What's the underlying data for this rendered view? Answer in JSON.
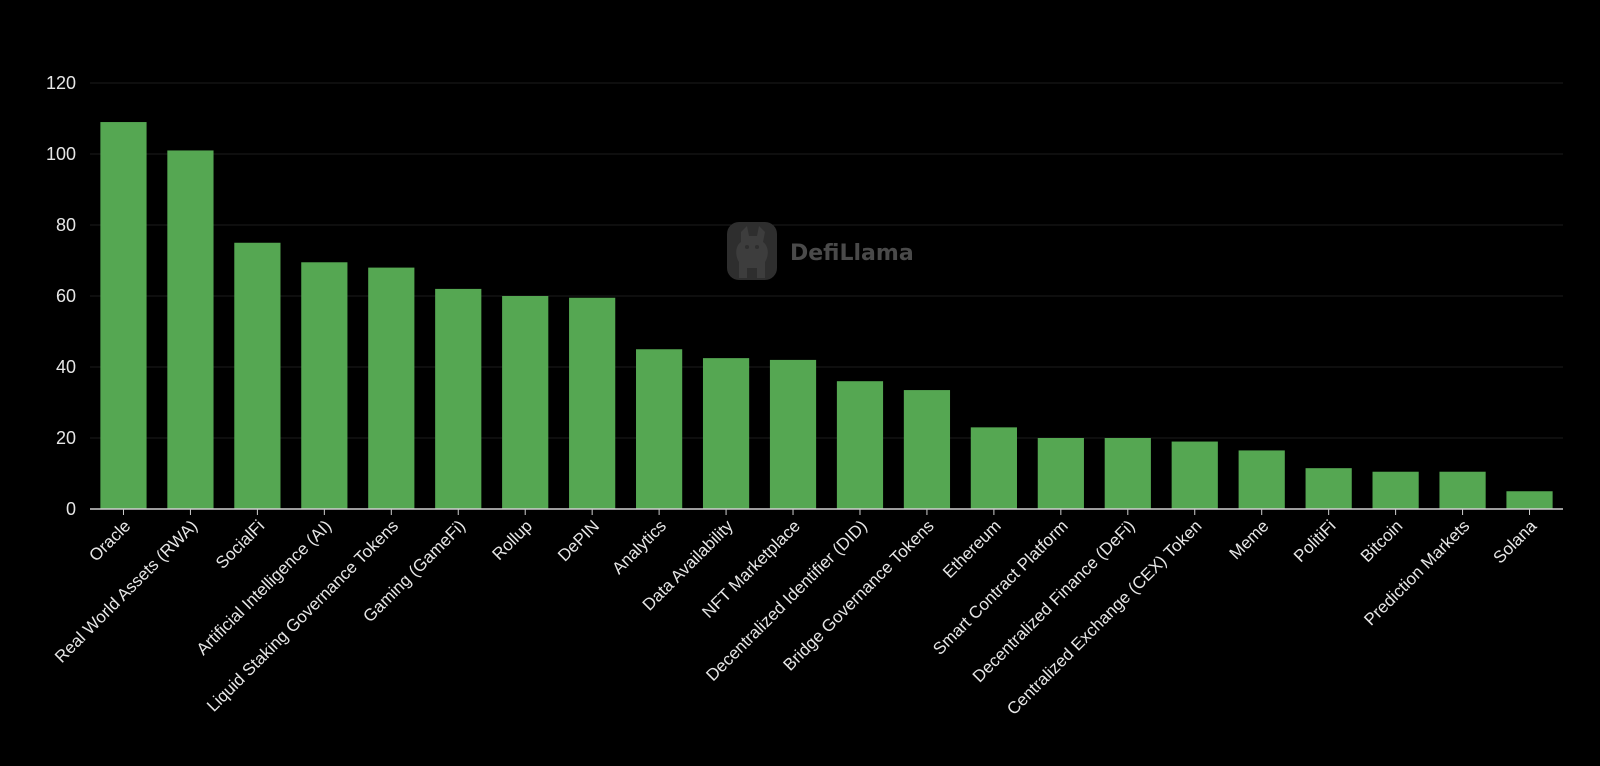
{
  "chart_data": {
    "type": "bar",
    "title": "",
    "xlabel": "",
    "ylabel": "",
    "ylim": [
      0,
      120
    ],
    "yticks": [
      0,
      20,
      40,
      60,
      80,
      100,
      120
    ],
    "grid": true,
    "bar_color": "#55a752",
    "background": "#000000",
    "categories": [
      "Oracle",
      "Real World Assets (RWA)",
      "SocialFi",
      "Artificial Intelligence (AI)",
      "Liquid Staking Governance Tokens",
      "Gaming (GameFi)",
      "Rollup",
      "DePIN",
      "Analytics",
      "Data Availability",
      "NFT Marketplace",
      "Decentralized Identifier (DID)",
      "Bridge Governance Tokens",
      "Ethereum",
      "Smart Contract Platform",
      "Decentralized Finance (DeFi)",
      "Centralized Exchange (CEX) Token",
      "Meme",
      "PolitiFi",
      "Bitcoin",
      "Prediction Markets",
      "Solana"
    ],
    "values": [
      109,
      101,
      75,
      69.5,
      68,
      62,
      60,
      59.5,
      45,
      42.5,
      42,
      36,
      33.5,
      23,
      20,
      20,
      19,
      16.5,
      11.5,
      10.5,
      10.5,
      5
    ]
  },
  "watermark": {
    "text": "DefiLlama",
    "icon": "llama-logo-icon"
  }
}
